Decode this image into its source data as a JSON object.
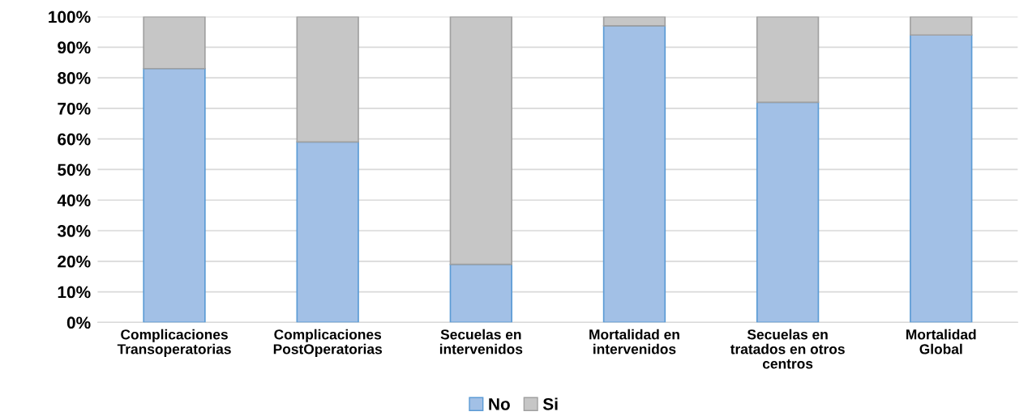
{
  "chart_data": {
    "type": "bar",
    "stacked": true,
    "categories": [
      "Complicaciones\nTransoperatorias",
      "Complicaciones\nPostOperatorias",
      "Secuelas en\nintervenidos",
      "Mortalidad en\nintervenidos",
      "Secuelas en\ntratados en otros\ncentros",
      "Mortalidad\nGlobal"
    ],
    "series": [
      {
        "name": "No",
        "color": "#a2c0e6",
        "values": [
          83,
          59,
          19,
          97,
          72,
          94
        ]
      },
      {
        "name": "Si",
        "color": "#c6c6c6",
        "values": [
          17,
          41,
          81,
          3,
          28,
          6
        ]
      }
    ],
    "ylim": [
      0,
      100
    ],
    "yticks": [
      {
        "value": 0,
        "label": "0%"
      },
      {
        "value": 10,
        "label": "10%"
      },
      {
        "value": 20,
        "label": "20%"
      },
      {
        "value": 30,
        "label": "30%"
      },
      {
        "value": 40,
        "label": "40%"
      },
      {
        "value": 50,
        "label": "50%"
      },
      {
        "value": 60,
        "label": "60%"
      },
      {
        "value": 70,
        "label": "70%"
      },
      {
        "value": 80,
        "label": "80%"
      },
      {
        "value": 90,
        "label": "90%"
      },
      {
        "value": 100,
        "label": "100%"
      }
    ],
    "grid": "y",
    "legend": "bottom"
  }
}
